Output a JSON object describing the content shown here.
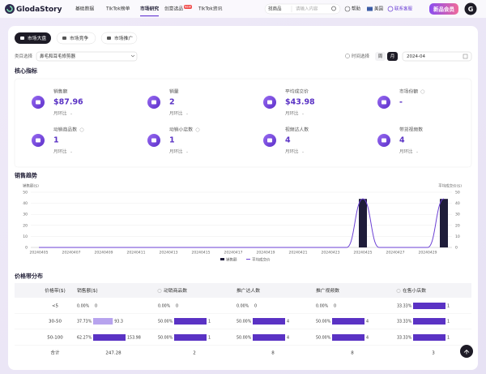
{
  "nav": {
    "logo": "GlodaStory",
    "items": [
      "基础数据",
      "TikTok榜单",
      "市场研究",
      "创意选品",
      "TikTok资讯"
    ],
    "badge": "NEW",
    "search_type": "找商品",
    "search_placeholder": "请输入内容",
    "help": "帮助",
    "region": "美国",
    "contact": "联系客服",
    "promo": "新品会员",
    "avatar": "G"
  },
  "tabs": [
    "市场大盘",
    "市场竞争",
    "市场推广"
  ],
  "filters": {
    "category_label": "类目选择",
    "category": "鼻毛和耳毛修剪器",
    "time_label": "时间选择",
    "periods": [
      "周",
      "月"
    ],
    "date": "2024-04"
  },
  "core_metrics": {
    "title": "核心指标",
    "items": [
      {
        "label": "销售额",
        "value": "$87.96",
        "change_label": "月环比",
        "change": "-"
      },
      {
        "label": "销量",
        "value": "2",
        "change_label": "月环比",
        "change": "-"
      },
      {
        "label": "平均成交价",
        "value": "$43.98",
        "change_label": "月环比",
        "change": "-"
      },
      {
        "label": "市场份额",
        "value": "-"
      },
      {
        "label": "动销商品数",
        "value": "1",
        "change_label": "月环比",
        "change": "-"
      },
      {
        "label": "动销小店数",
        "value": "1",
        "change_label": "月环比",
        "change": "-"
      },
      {
        "label": "视频达人数",
        "value": "4",
        "change_label": "月环比",
        "change": "-"
      },
      {
        "label": "带货视频数",
        "value": "4",
        "change_label": "月环比",
        "change": "-"
      }
    ]
  },
  "sales_trend_title": "销售趋势",
  "chart_data": {
    "type": "combo",
    "y_label": "销售额($)",
    "y2_label": "平均成交价($)",
    "categories": [
      "20240405",
      null,
      "20240407",
      null,
      "20240409",
      null,
      "20240411",
      null,
      "20240413",
      null,
      "20240415",
      null,
      "20240417",
      null,
      "20240419",
      null,
      "20240421",
      null,
      "20240423",
      null,
      "20240425",
      null,
      "20240427",
      null,
      "20240429",
      null
    ],
    "series": [
      {
        "name": "销售额",
        "type": "bar",
        "color": "#1f1d3a",
        "values": [
          0,
          0,
          0,
          0,
          0,
          0,
          0,
          0,
          0,
          0,
          0,
          0,
          0,
          0,
          0,
          0,
          0,
          0,
          0,
          0,
          43.98,
          0,
          0,
          0,
          0,
          43.98
        ]
      },
      {
        "name": "平均成交价",
        "type": "line",
        "axis": "y2",
        "color": "#6b3fd4",
        "values": [
          0,
          0,
          0,
          0,
          0,
          0,
          0,
          0,
          0,
          0,
          0,
          0,
          0,
          0,
          0,
          0,
          0,
          0,
          0,
          0,
          43.98,
          0,
          0,
          0,
          0,
          43.98
        ]
      }
    ],
    "ylim": [
      0,
      50
    ],
    "yticks": [
      0,
      10,
      20,
      30,
      40,
      50
    ],
    "y2lim": [
      0,
      50
    ],
    "y2ticks": [
      0,
      10,
      20,
      30,
      40,
      50
    ],
    "grid": true
  },
  "price_table": {
    "title": "价格带分布",
    "headers": [
      "价格带($)",
      "销售额($)",
      "动销商品数",
      "推广达人数",
      "推广视频数",
      "在售小店数"
    ],
    "rows": [
      {
        "band": "<5",
        "cells": [
          {
            "share": 0,
            "share_label": "0.00%",
            "value": "0"
          },
          {
            "share": 0,
            "share_label": "0.00%",
            "value": "0"
          },
          {
            "share": 0,
            "share_label": "0.00%",
            "value": "0"
          },
          {
            "share": 0,
            "share_label": "0.00%",
            "value": "0"
          },
          {
            "share": 33.33,
            "share_label": "33.33%",
            "value": "1"
          }
        ]
      },
      {
        "band": "30-50",
        "cells": [
          {
            "share": 37.73,
            "share_label": "37.73%",
            "value": "93.3"
          },
          {
            "share": 50,
            "share_label": "50.00%",
            "value": "1"
          },
          {
            "share": 50,
            "share_label": "50.00%",
            "value": "4"
          },
          {
            "share": 50,
            "share_label": "50.00%",
            "value": "4"
          },
          {
            "share": 33.33,
            "share_label": "33.33%",
            "value": "1"
          }
        ]
      },
      {
        "band": "50-100",
        "cells": [
          {
            "share": 62.27,
            "share_label": "62.27%",
            "value": "153.98"
          },
          {
            "share": 50,
            "share_label": "50.00%",
            "value": "1"
          },
          {
            "share": 50,
            "share_label": "50.00%",
            "value": "4"
          },
          {
            "share": 50,
            "share_label": "50.00%",
            "value": "4"
          },
          {
            "share": 33.33,
            "share_label": "33.33%",
            "value": "1"
          }
        ]
      }
    ],
    "total": {
      "label": "合计",
      "values": [
        "247.28",
        "2",
        "8",
        "8",
        "3"
      ]
    }
  }
}
